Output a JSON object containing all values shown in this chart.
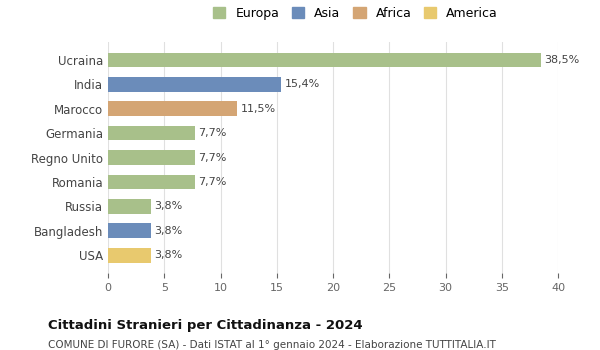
{
  "categories": [
    "Ucraina",
    "India",
    "Marocco",
    "Germania",
    "Regno Unito",
    "Romania",
    "Russia",
    "Bangladesh",
    "USA"
  ],
  "values": [
    38.5,
    15.4,
    11.5,
    7.7,
    7.7,
    7.7,
    3.8,
    3.8,
    3.8
  ],
  "labels": [
    "38,5%",
    "15,4%",
    "11,5%",
    "7,7%",
    "7,7%",
    "7,7%",
    "3,8%",
    "3,8%",
    "3,8%"
  ],
  "colors": [
    "#a8c08a",
    "#6b8cba",
    "#d4a574",
    "#a8c08a",
    "#a8c08a",
    "#a8c08a",
    "#a8c08a",
    "#6b8cba",
    "#e8c96e"
  ],
  "legend_labels": [
    "Europa",
    "Asia",
    "Africa",
    "America"
  ],
  "legend_colors": [
    "#a8c08a",
    "#6b8cba",
    "#d4a574",
    "#e8c96e"
  ],
  "xlim": [
    0,
    40
  ],
  "xticks": [
    0,
    5,
    10,
    15,
    20,
    25,
    30,
    35,
    40
  ],
  "title": "Cittadini Stranieri per Cittadinanza - 2024",
  "subtitle": "COMUNE DI FURORE (SA) - Dati ISTAT al 1° gennaio 2024 - Elaborazione TUTTITALIA.IT",
  "background_color": "#ffffff",
  "grid_color": "#e0e0e0",
  "bar_height": 0.6
}
